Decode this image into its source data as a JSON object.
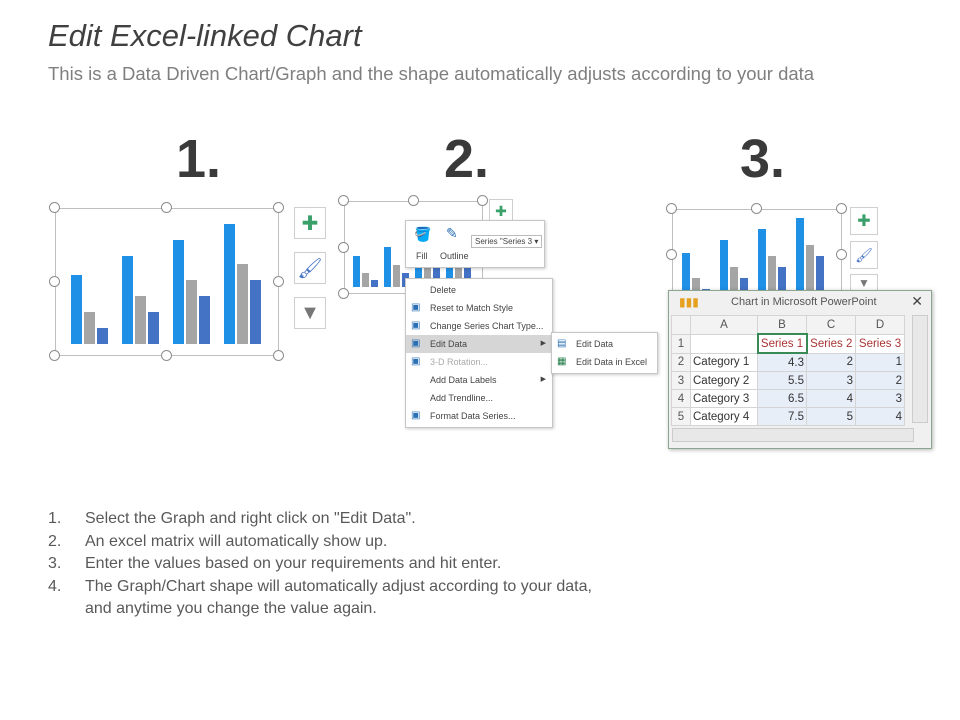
{
  "title": "Edit Excel-linked Chart",
  "subtitle": "This is a Data Driven Chart/Graph and the shape automatically adjusts according to your data",
  "step_numbers": [
    "1.",
    "2.",
    "3."
  ],
  "colors": {
    "series1": "#1e90e6",
    "series2": "#a5a5a5",
    "series3": "#4472c4",
    "accent_green": "#3aa06a"
  },
  "chart_data": {
    "type": "bar",
    "categories": [
      "Category 1",
      "Category 2",
      "Category 3",
      "Category 4"
    ],
    "series": [
      {
        "name": "Series 1",
        "values": [
          4.3,
          5.5,
          6.5,
          7.5
        ]
      },
      {
        "name": "Series 2",
        "values": [
          2,
          3,
          4,
          5
        ]
      },
      {
        "name": "Series 3",
        "values": [
          1,
          2,
          3,
          4
        ]
      }
    ]
  },
  "side_buttons": [
    "plus-icon",
    "brush-icon",
    "filter-icon"
  ],
  "format_toolbar": {
    "fill": "Fill",
    "outline": "Outline",
    "series_select": "Series \"Series 3"
  },
  "context_menu": [
    {
      "label": "Delete",
      "icon": ""
    },
    {
      "label": "Reset to Match Style",
      "icon": "reset-icon"
    },
    {
      "label": "Change Series Chart Type...",
      "icon": "chart-type-icon"
    },
    {
      "label": "Edit Data",
      "icon": "edit-data-icon",
      "submenu": true
    },
    {
      "label": "3-D Rotation...",
      "icon": "rotation-icon",
      "disabled": true
    },
    {
      "label": "Add Data Labels",
      "icon": "",
      "submenu": true
    },
    {
      "label": "Add Trendline...",
      "icon": ""
    },
    {
      "label": "Format Data Series...",
      "icon": "format-icon"
    }
  ],
  "submenu": [
    "Edit Data",
    "Edit Data in Excel"
  ],
  "sheet": {
    "title": "Chart in Microsoft PowerPoint",
    "columns": [
      "A",
      "B",
      "C",
      "D"
    ],
    "rows": [
      "1",
      "2",
      "3",
      "4",
      "5"
    ],
    "header": [
      "",
      "Series 1",
      "Series 2",
      "Series 3"
    ],
    "data": [
      [
        "Category 1",
        "4.3",
        "2",
        "1"
      ],
      [
        "Category 2",
        "5.5",
        "3",
        "2"
      ],
      [
        "Category 3",
        "6.5",
        "4",
        "3"
      ],
      [
        "Category 4",
        "7.5",
        "5",
        "4"
      ]
    ]
  },
  "steps": [
    {
      "n": "1.",
      "text": "Select the Graph and right click on \"Edit Data\"."
    },
    {
      "n": "2.",
      "text": "An excel matrix will automatically show up."
    },
    {
      "n": "3.",
      "text": "Enter the values based on your requirements and hit enter."
    },
    {
      "n": "4.",
      "text": "The Graph/Chart shape will automatically adjust according to your data,"
    },
    {
      "n": "",
      "text": "and anytime you change the value again."
    }
  ]
}
